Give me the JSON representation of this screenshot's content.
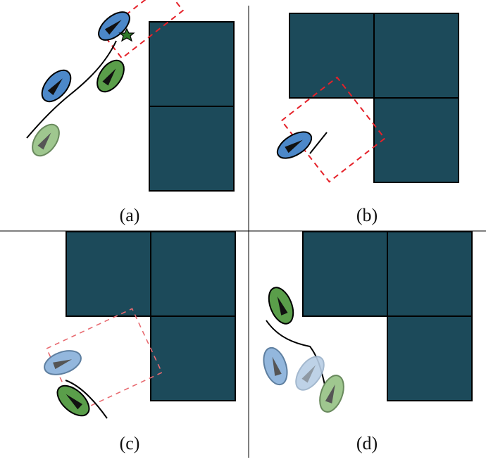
{
  "figure": {
    "panels": [
      {
        "id": "a",
        "label": "(a)"
      },
      {
        "id": "b",
        "label": "(b)"
      },
      {
        "id": "c",
        "label": "(c)"
      },
      {
        "id": "d",
        "label": "(d)"
      }
    ],
    "colors": {
      "block": "#1c4a5a",
      "blue_robot": "#4c88c9",
      "green_robot": "#5a9e4a",
      "dashed_region": "#e5222a",
      "goal_star": "#2f7a2a"
    }
  }
}
